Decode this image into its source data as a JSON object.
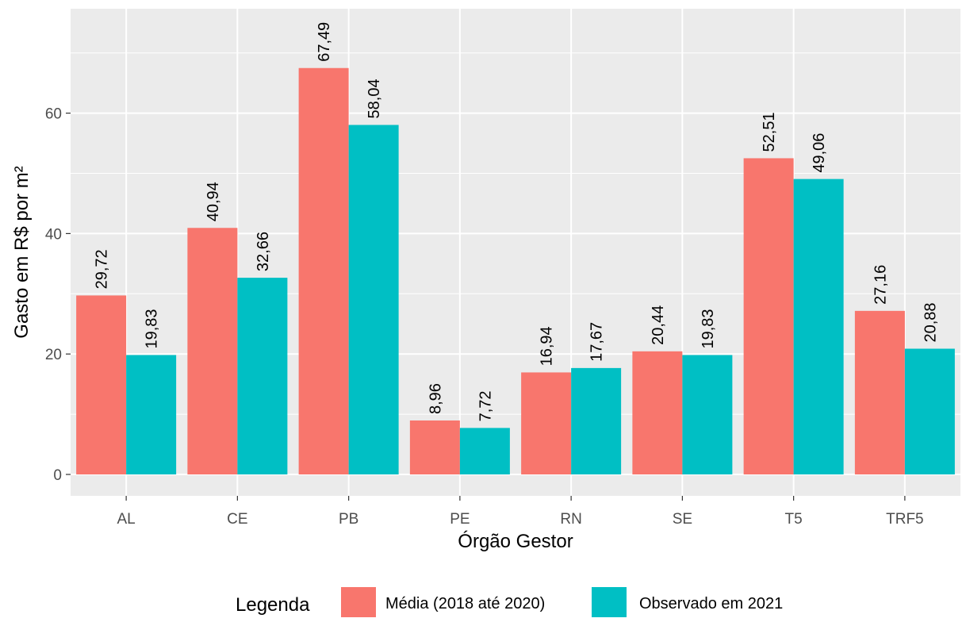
{
  "chart_data": {
    "type": "bar",
    "title": "",
    "xlabel": "Órgão Gestor",
    "ylabel": "Gasto em R$ por m²",
    "categories": [
      "AL",
      "CE",
      "PB",
      "PE",
      "RN",
      "SE",
      "T5",
      "TRF5"
    ],
    "series": [
      {
        "name": "Média (2018 até 2020)",
        "color": "#F8766D",
        "values": [
          29.72,
          40.94,
          67.49,
          8.96,
          16.94,
          20.44,
          52.51,
          27.16
        ],
        "labels": [
          "29,72",
          "40,94",
          "67,49",
          "8,96",
          "16,94",
          "20,44",
          "52,51",
          "27,16"
        ]
      },
      {
        "name": "Observado em 2021",
        "color": "#00BFC4",
        "values": [
          19.83,
          32.66,
          58.04,
          7.72,
          17.67,
          19.83,
          49.06,
          20.88
        ],
        "labels": [
          "19,83",
          "32,66",
          "58,04",
          "7,72",
          "17,67",
          "19,83",
          "49,06",
          "20,88"
        ]
      }
    ],
    "y_ticks": [
      0,
      20,
      40,
      60
    ],
    "ylim": [
      0,
      70.9
    ],
    "grid": true,
    "legend": {
      "title": "Legenda",
      "position": "bottom"
    },
    "colors": {
      "panel_background": "#EBEBEB",
      "grid": "#FFFFFF",
      "text": "#000000",
      "tick_text": "#4D4D4D"
    }
  }
}
